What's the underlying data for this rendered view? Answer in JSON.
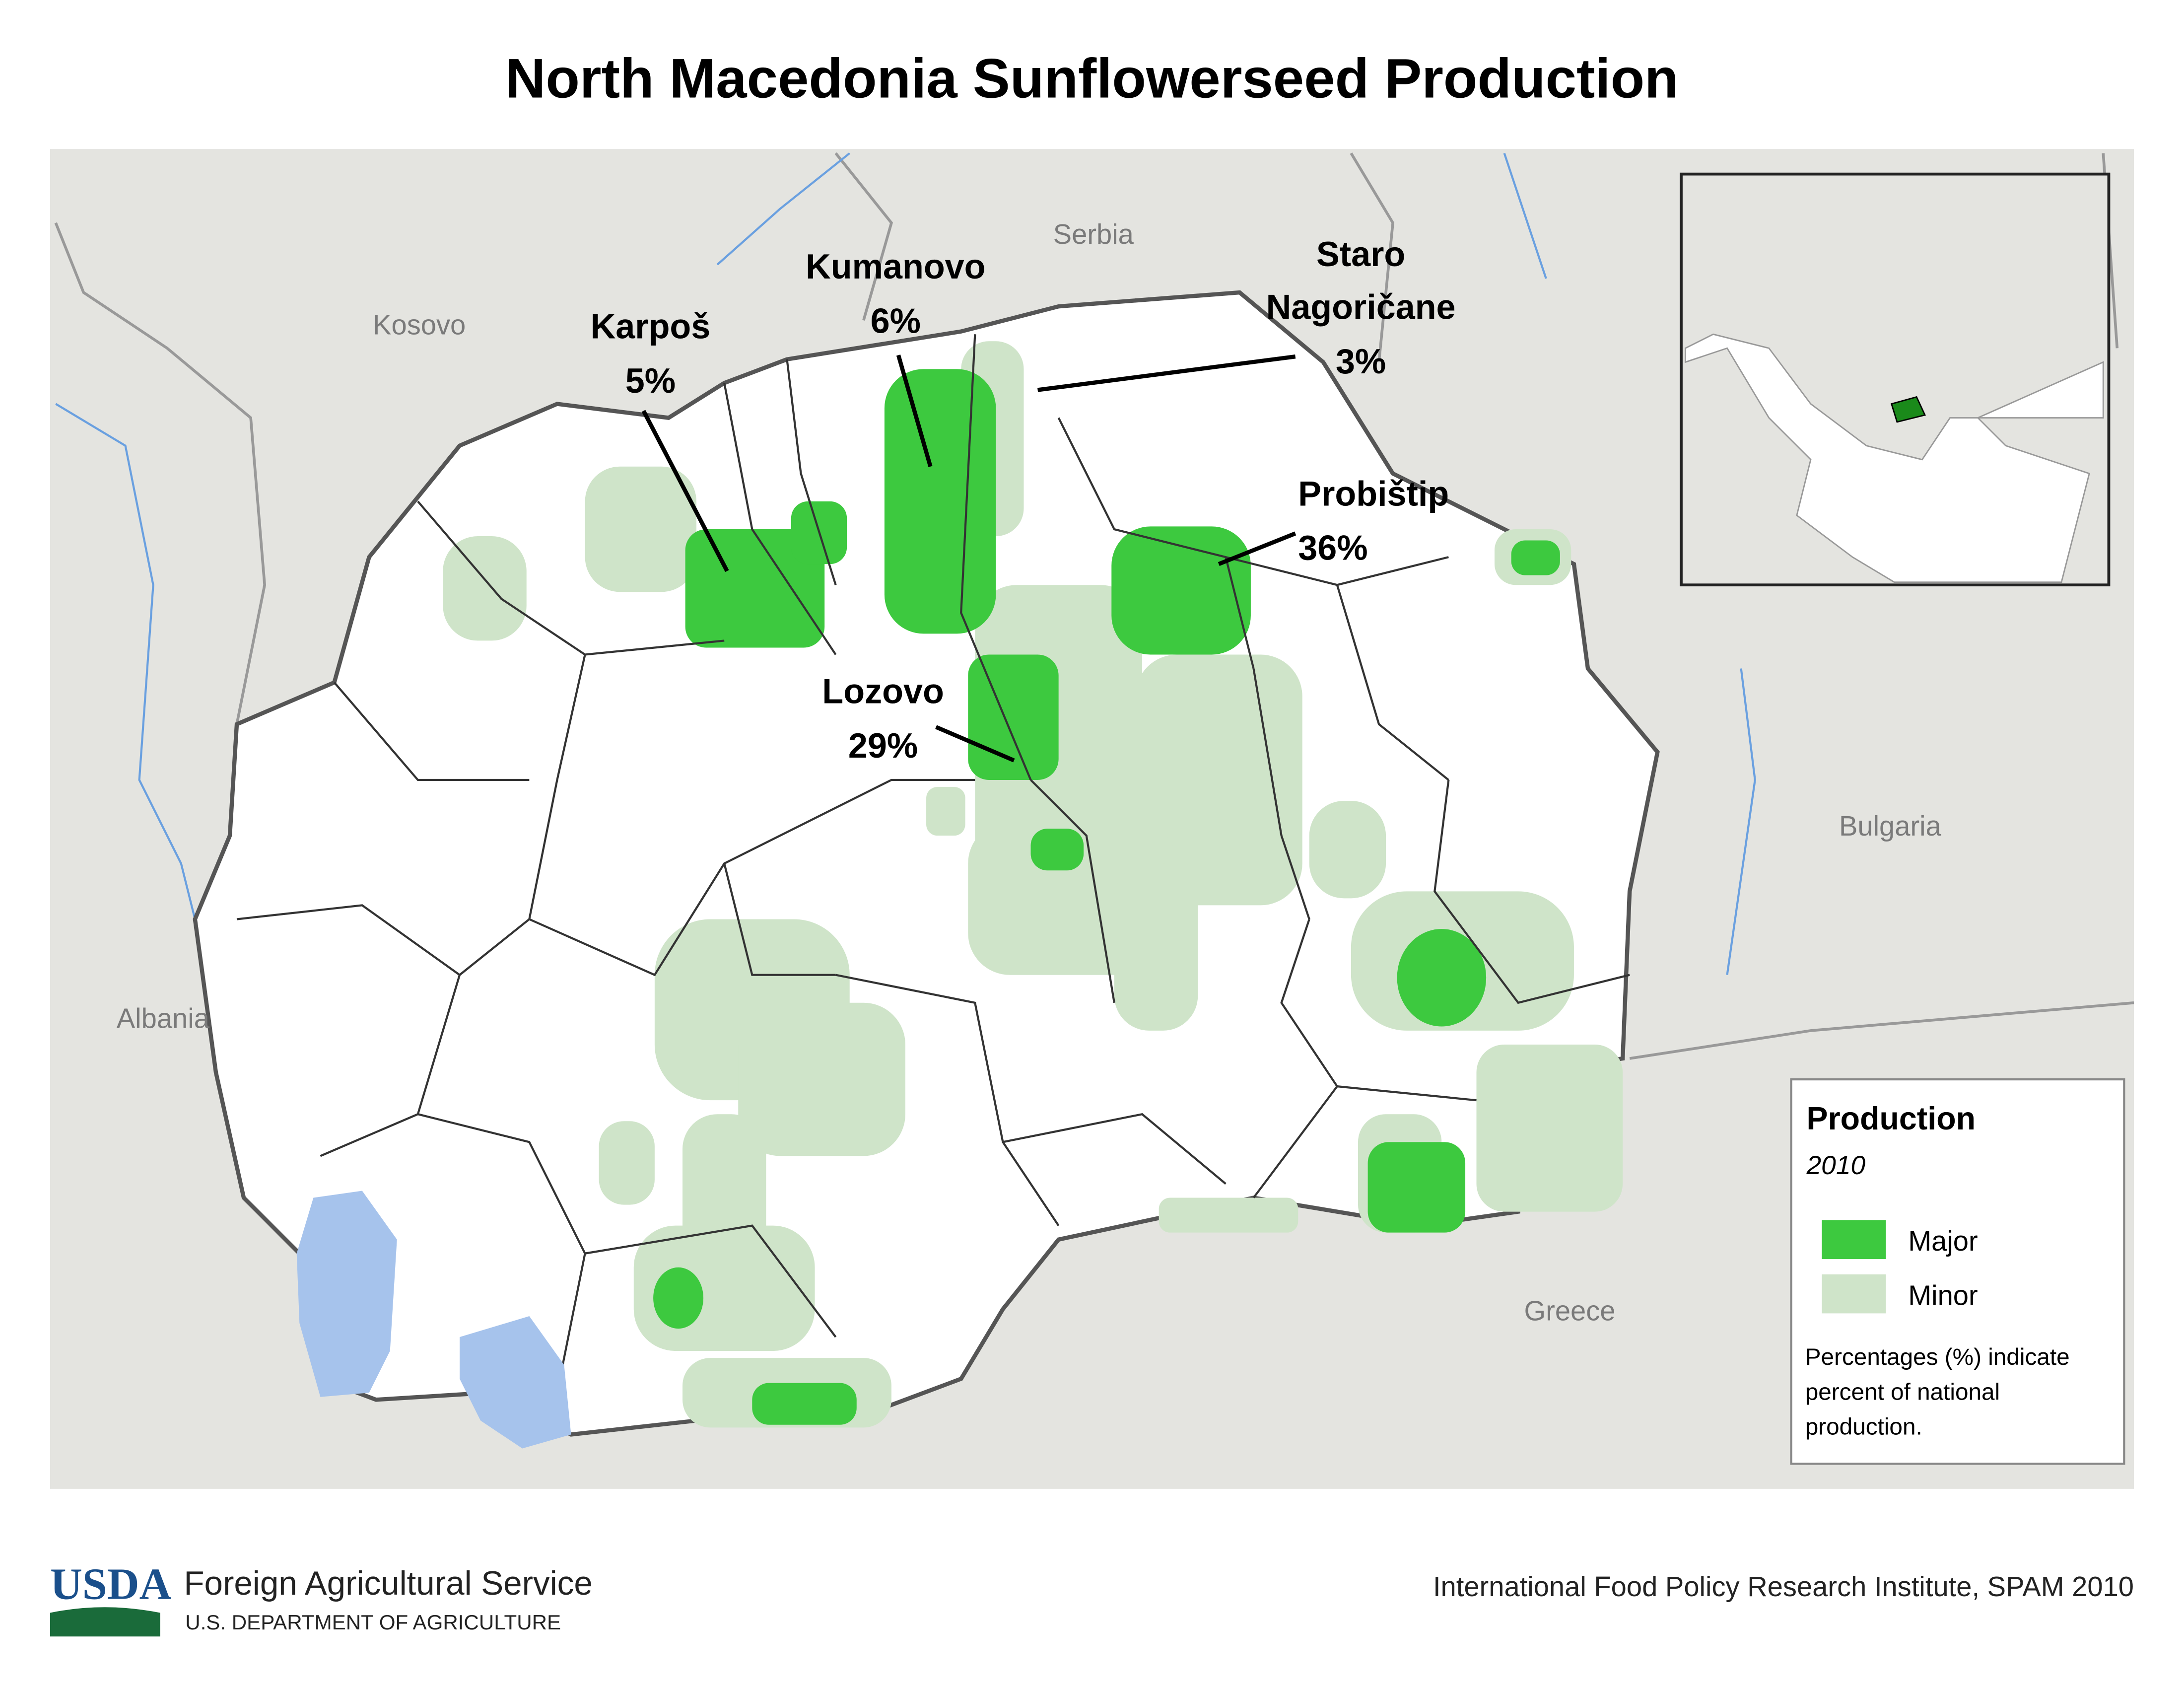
{
  "title": "North Macedonia Sunflowerseed Production",
  "map": {
    "countries": [
      "Serbia",
      "Kosovo",
      "Albania",
      "Bulgaria",
      "Greece"
    ],
    "annotations": [
      {
        "name": [
          "Karpoš"
        ],
        "share": "5%"
      },
      {
        "name": [
          "Kumanovo"
        ],
        "share": "6%"
      },
      {
        "name": [
          "Staro",
          "Nagoričane"
        ],
        "share": "3%"
      },
      {
        "name": [
          "Probištip"
        ],
        "share": "36%"
      },
      {
        "name": [
          "Lozovo"
        ],
        "share": "29%"
      }
    ]
  },
  "legend": {
    "title": "Production",
    "subtitle": "2010",
    "items": [
      "Major",
      "Minor"
    ],
    "note": [
      "Percentages (%) indicate",
      "percent of national",
      "production."
    ]
  },
  "footer": {
    "logo": "USDA",
    "agency": "Foreign Agricultural Service",
    "department": "U.S. DEPARTMENT OF AGRICULTURE",
    "source": "International Food Policy Research Institute, SPAM 2010"
  }
}
